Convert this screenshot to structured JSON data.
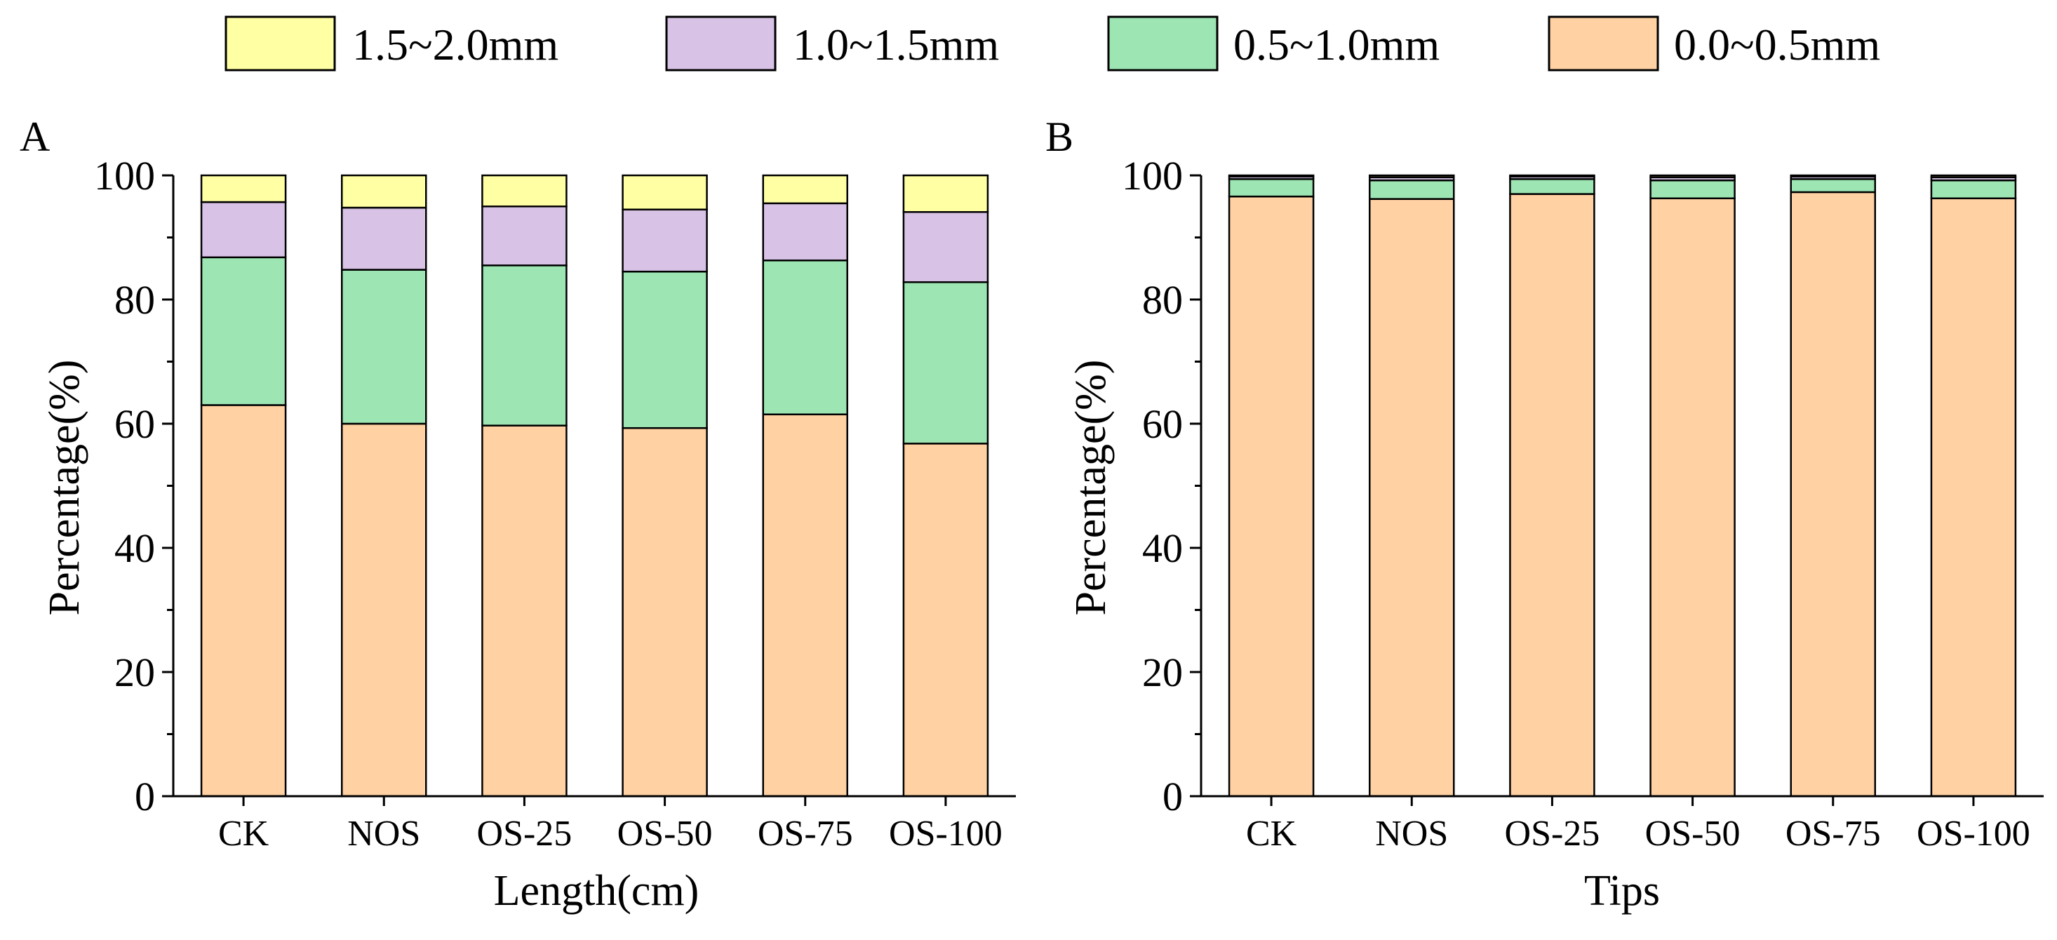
{
  "legend": {
    "entries": [
      {
        "label": "1.5~2.0mm",
        "color": "#FFFFA3"
      },
      {
        "label": "1.0~1.5mm",
        "color": "#D8C3E6"
      },
      {
        "label": "0.5~1.0mm",
        "color": "#9DE6B3"
      },
      {
        "label": "0.0~0.5mm",
        "color": "#FFD1A3"
      }
    ]
  },
  "chart_data": [
    {
      "type": "bar",
      "stacked": true,
      "panel": "A",
      "title": "",
      "xlabel": "Length(cm)",
      "ylabel": "Percentage(%)",
      "ylim": [
        0,
        100
      ],
      "yticks": [
        0,
        20,
        40,
        60,
        80,
        100
      ],
      "categories": [
        "CK",
        "NOS",
        "OS-25",
        "OS-50",
        "OS-75",
        "OS-100"
      ],
      "series": [
        {
          "name": "0.0~0.5mm",
          "color": "#FFD1A3",
          "values": [
            63.0,
            60.0,
            59.7,
            59.3,
            61.5,
            56.8
          ]
        },
        {
          "name": "0.5~1.0mm",
          "color": "#9DE6B3",
          "values": [
            23.8,
            24.8,
            25.8,
            25.2,
            24.8,
            26.0
          ]
        },
        {
          "name": "1.0~1.5mm",
          "color": "#D8C3E6",
          "values": [
            8.9,
            10.0,
            9.5,
            10.0,
            9.2,
            11.3
          ]
        },
        {
          "name": "1.5~2.0mm",
          "color": "#FFFFA3",
          "values": [
            4.3,
            5.2,
            5.0,
            5.5,
            4.5,
            5.9
          ]
        }
      ]
    },
    {
      "type": "bar",
      "stacked": true,
      "panel": "B",
      "title": "",
      "xlabel": "Tips",
      "ylabel": "Percentage(%)",
      "ylim": [
        0,
        100
      ],
      "yticks": [
        0,
        20,
        40,
        60,
        80,
        100
      ],
      "categories": [
        "CK",
        "NOS",
        "OS-25",
        "OS-50",
        "OS-75",
        "OS-100"
      ],
      "series": [
        {
          "name": "0.0~0.5mm",
          "color": "#FFD1A3",
          "values": [
            96.6,
            96.2,
            97.0,
            96.3,
            97.3,
            96.3
          ]
        },
        {
          "name": "0.5~1.0mm",
          "color": "#9DE6B3",
          "values": [
            2.8,
            3.0,
            2.4,
            2.9,
            2.1,
            2.9
          ]
        },
        {
          "name": "1.0~1.5mm",
          "color": "#D8C3E6",
          "values": [
            0.4,
            0.5,
            0.4,
            0.5,
            0.4,
            0.5
          ]
        },
        {
          "name": "1.5~2.0mm",
          "color": "#FFFFA3",
          "values": [
            0.2,
            0.3,
            0.2,
            0.3,
            0.2,
            0.3
          ]
        }
      ]
    }
  ]
}
